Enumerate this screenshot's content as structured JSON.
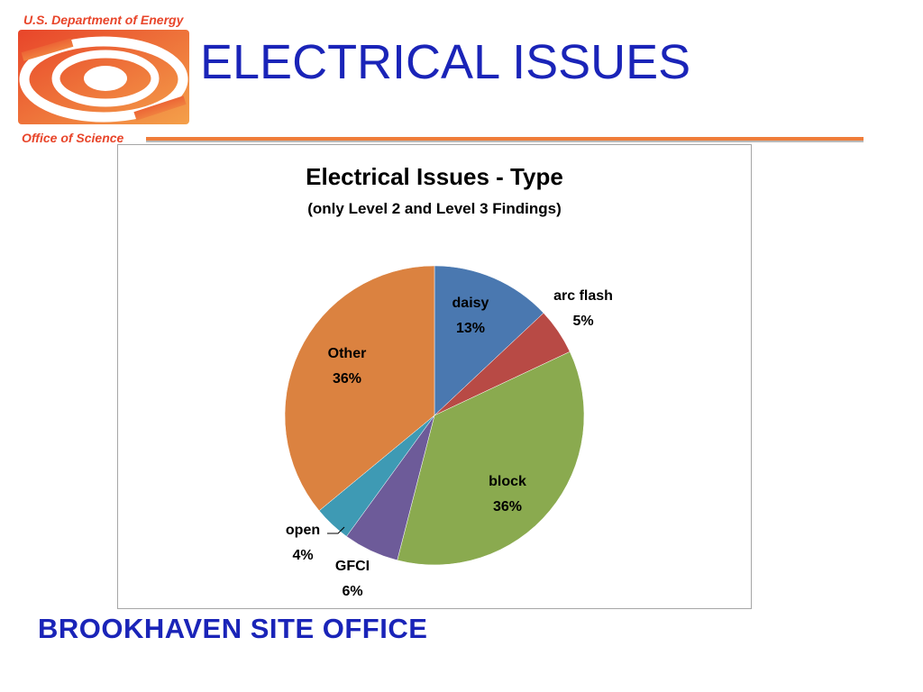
{
  "branding": {
    "agency": "U.S. Department of Energy",
    "office": "Office of Science"
  },
  "slide": {
    "title": "ELECTRICAL ISSUES",
    "footer": "BROOKHAVEN SITE OFFICE"
  },
  "colors": {
    "title_blue": "#1a24b8",
    "logo_orange": "#ef7d3a",
    "logo_red": "#e8452a"
  },
  "chart_data": {
    "type": "pie",
    "title": "Electrical Issues - Type",
    "subtitle": "(only Level 2 and Level 3 Findings)",
    "slices": [
      {
        "label": "daisy",
        "percent_label": "13%",
        "value": 13,
        "color": "#4a78b0"
      },
      {
        "label": "arc flash",
        "percent_label": "5%",
        "value": 5,
        "color": "#b84a45"
      },
      {
        "label": "block",
        "percent_label": "36%",
        "value": 36,
        "color": "#8aaa4f"
      },
      {
        "label": "GFCI",
        "percent_label": "6%",
        "value": 6,
        "color": "#6d5b99"
      },
      {
        "label": "open",
        "percent_label": "4%",
        "value": 4,
        "color": "#3e9ab4"
      },
      {
        "label": "Other",
        "percent_label": "36%",
        "value": 36,
        "color": "#db8240"
      }
    ],
    "legend": "none"
  }
}
